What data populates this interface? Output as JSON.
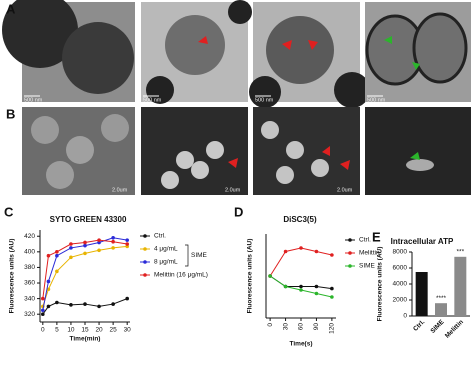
{
  "figure": {
    "panel_labels": [
      "A",
      "B",
      "C",
      "D",
      "E"
    ],
    "scale_bars_a": [
      "500 nm",
      "500 nm",
      "500 nm",
      "500 nm"
    ],
    "scale_bars_b": [
      "2.0um",
      "2.0um",
      "2.0um"
    ]
  },
  "chart_data": [
    {
      "type": "line",
      "title": "SYTO GREEN 43300",
      "x_label": "Time(min)",
      "y_label": "Fluorescence units (AU)",
      "x": [
        0,
        2,
        5,
        10,
        15,
        20,
        25,
        30
      ],
      "xlim": [
        -1,
        31
      ],
      "xticks": [
        0,
        5,
        10,
        15,
        20,
        25,
        30
      ],
      "ylim": [
        310,
        428
      ],
      "yticks": [
        320,
        340,
        360,
        380,
        400,
        420
      ],
      "series": [
        {
          "name": "Ctrl.",
          "color": "#111111",
          "values": [
            320,
            330,
            335,
            332,
            333,
            330,
            333,
            340
          ]
        },
        {
          "name": "4 μg/mL",
          "color": "#e8b400",
          "values": [
            330,
            352,
            375,
            393,
            398,
            402,
            405,
            407
          ]
        },
        {
          "name": "8 μg/mL",
          "color": "#2a2ad8",
          "values": [
            325,
            362,
            395,
            405,
            408,
            412,
            418,
            415
          ]
        },
        {
          "name": "Melittin (16 μg/mL)",
          "color": "#e02020",
          "values": [
            340,
            395,
            400,
            410,
            412,
            415,
            413,
            410
          ]
        }
      ],
      "legend": "right",
      "legend_group": "SIME"
    },
    {
      "type": "line",
      "title": "DiSC3(5)",
      "x_label": "Time(s)",
      "y_label": "Fluorescence units (AU)",
      "x": [
        0,
        30,
        60,
        90,
        120
      ],
      "xlim": [
        -8,
        128
      ],
      "xticks": [
        0,
        30,
        60,
        90,
        120
      ],
      "ylim": [
        0,
        120
      ],
      "series": [
        {
          "name": "Ctrl.",
          "color": "#111111",
          "values": [
            60,
            45,
            45,
            45,
            42
          ]
        },
        {
          "name": "Melittin",
          "color": "#e02020",
          "values": [
            60,
            95,
            100,
            95,
            90
          ]
        },
        {
          "name": "SIME",
          "color": "#2bb52b",
          "values": [
            60,
            45,
            40,
            35,
            30
          ]
        }
      ],
      "legend": "right"
    },
    {
      "type": "bar",
      "title": "Intracellular ATP",
      "y_label": "Fluorescence units (AU)",
      "categories": [
        "Ctrl.",
        "SIME",
        "Melittin"
      ],
      "values": [
        5500,
        1600,
        7400
      ],
      "colors": [
        "#111111",
        "#8a8a8a",
        "#8a8a8a"
      ],
      "ylim": [
        0,
        8000
      ],
      "yticks": [
        0,
        2000,
        4000,
        6000,
        8000
      ],
      "annotations": {
        "SIME": "****",
        "Melittin": "***"
      }
    }
  ]
}
